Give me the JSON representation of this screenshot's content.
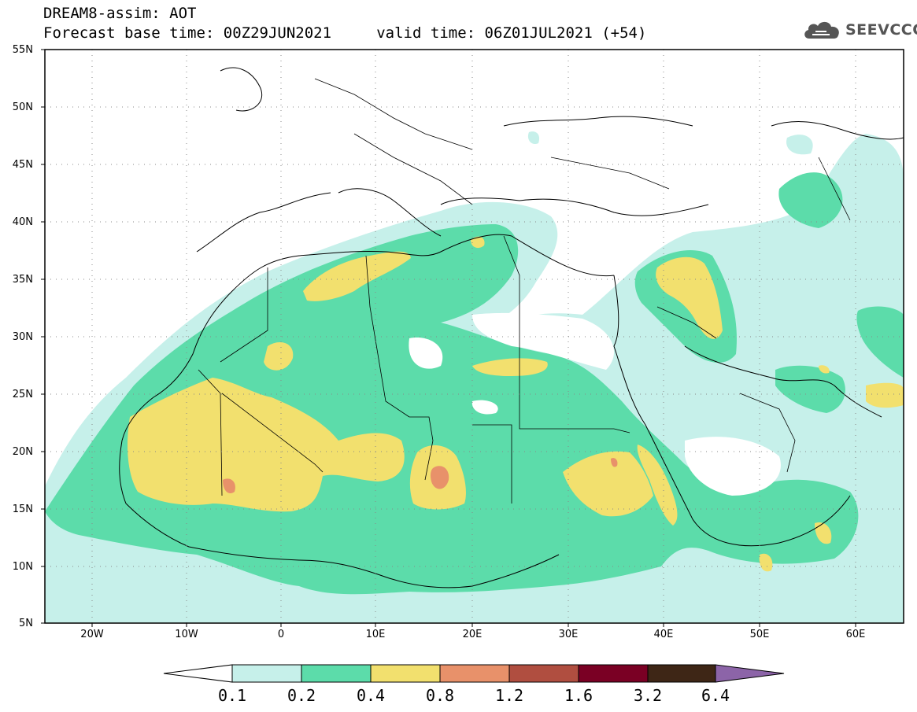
{
  "title": {
    "line1": "DREAM8-assim: AOT",
    "line2": "Forecast base time: 00Z29JUN2021     valid time: 06Z01JUL2021 (+54)"
  },
  "logo": {
    "text": "SEEVCCC",
    "icon": "cloud-icon"
  },
  "map": {
    "projection": "lat-lon",
    "lon_range": [
      -25,
      65
    ],
    "lat_range": [
      5,
      55
    ],
    "lat_ticks": [
      "55N",
      "50N",
      "45N",
      "40N",
      "35N",
      "30N",
      "25N",
      "20N",
      "15N",
      "10N",
      "5N"
    ],
    "lon_ticks": [
      "20W",
      "10W",
      "0",
      "10E",
      "20E",
      "30E",
      "40E",
      "50E",
      "60E"
    ],
    "grid": "dotted",
    "coastlines": true,
    "borders": true
  },
  "colorbar": {
    "labels": [
      "0.1",
      "0.2",
      "0.4",
      "0.8",
      "1.2",
      "1.6",
      "3.2",
      "6.4"
    ],
    "colors": [
      "#c6f0ea",
      "#5cdcaa",
      "#f2e06e",
      "#e8916a",
      "#b04e40",
      "#7a0024",
      "#3e2616",
      "#8c64a8"
    ],
    "extend": "both"
  },
  "colors": {
    "c01": "#c6f0ea",
    "c02": "#5cdcaa",
    "c04": "#f2e06e",
    "c08": "#e8916a",
    "c12": "#b04e40"
  }
}
